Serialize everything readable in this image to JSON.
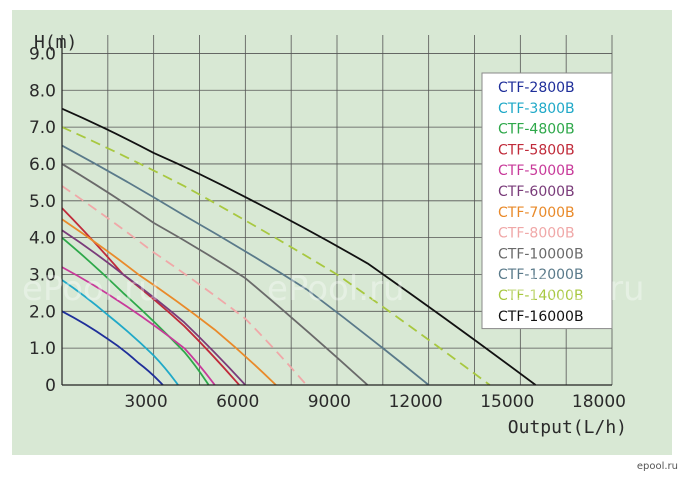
{
  "site_tag": "epool.ru",
  "watermarks": [
    "ePool.ru",
    "ePool.ru",
    "ePool.ru"
  ],
  "chart_data": {
    "type": "line",
    "ylabel": "H(m)",
    "xlabel": "Output(L/h)",
    "xlim": [
      0,
      18000
    ],
    "ylim": [
      0,
      9.5
    ],
    "x_ticks": [
      3000,
      6000,
      9000,
      12000,
      15000,
      18000
    ],
    "x_tick_labels": [
      "3000",
      "6000",
      "9000",
      "12000",
      "15000",
      "18000"
    ],
    "y_ticks": [
      0,
      1,
      2,
      3,
      4,
      5,
      6,
      7,
      8,
      9
    ],
    "y_tick_labels": [
      "0",
      "1.0",
      "2.0",
      "3.0",
      "4.0",
      "5.0",
      "6.0",
      "7.0",
      "8.0",
      "9.0"
    ],
    "grid": true,
    "legend_position": "top-right",
    "series": [
      {
        "name": "CTF-2800B",
        "color": "#1f2f9a",
        "dashed": false,
        "x": [
          0,
          1500,
          2500,
          3300
        ],
        "y": [
          2.0,
          1.25,
          0.6,
          0
        ]
      },
      {
        "name": "CTF-3800B",
        "color": "#20a9c8",
        "dashed": false,
        "x": [
          0,
          1500,
          3000,
          3800
        ],
        "y": [
          2.85,
          1.9,
          0.8,
          0
        ]
      },
      {
        "name": "CTF-4800B",
        "color": "#2ea84a",
        "dashed": false,
        "x": [
          0,
          2000,
          4000,
          4800
        ],
        "y": [
          4.0,
          2.5,
          0.9,
          0
        ]
      },
      {
        "name": "CTF-5800B",
        "color": "#c02a3a",
        "dashed": false,
        "x": [
          0,
          2000,
          4000,
          5800
        ],
        "y": [
          4.8,
          3.0,
          1.6,
          0
        ]
      },
      {
        "name": "CTF-5000B",
        "color": "#c83a9a",
        "dashed": false,
        "x": [
          0,
          2000,
          4000,
          5000
        ],
        "y": [
          3.2,
          2.2,
          1.0,
          0
        ]
      },
      {
        "name": "CTF-6000B",
        "color": "#7a3c7a",
        "dashed": false,
        "x": [
          0,
          2000,
          4000,
          6000
        ],
        "y": [
          4.2,
          3.0,
          1.7,
          0
        ]
      },
      {
        "name": "CTF-7000B",
        "color": "#e98a2a",
        "dashed": false,
        "x": [
          0,
          2500,
          5000,
          7000
        ],
        "y": [
          4.5,
          3.0,
          1.5,
          0
        ]
      },
      {
        "name": "CTF-8000B",
        "color": "#f0a8a8",
        "dashed": true,
        "x": [
          0,
          3000,
          6000,
          8000
        ],
        "y": [
          5.4,
          3.6,
          1.8,
          0
        ]
      },
      {
        "name": "CTF-10000B",
        "color": "#6a6a6a",
        "dashed": false,
        "x": [
          0,
          3000,
          6000,
          10000
        ],
        "y": [
          6.0,
          4.4,
          2.9,
          0
        ]
      },
      {
        "name": "CTF-12000B",
        "color": "#5a7a8a",
        "dashed": false,
        "x": [
          0,
          4000,
          8000,
          12000
        ],
        "y": [
          6.5,
          4.6,
          2.6,
          0
        ]
      },
      {
        "name": "CTF-14000B",
        "color": "#a8c840",
        "dashed": true,
        "x": [
          0,
          4000,
          9000,
          14000
        ],
        "y": [
          7.0,
          5.4,
          3.0,
          0
        ]
      },
      {
        "name": "CTF-16000B",
        "color": "#111111",
        "dashed": false,
        "x": [
          0,
          3000,
          6000,
          10000,
          15500
        ],
        "y": [
          7.5,
          6.3,
          5.1,
          3.3,
          0
        ]
      }
    ]
  }
}
